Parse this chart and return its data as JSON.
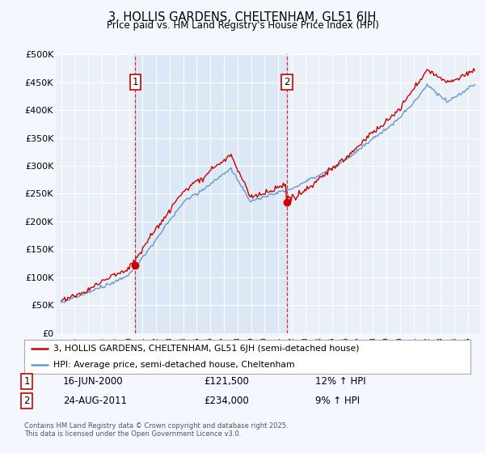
{
  "title": "3, HOLLIS GARDENS, CHELTENHAM, GL51 6JH",
  "subtitle": "Price paid vs. HM Land Registry's House Price Index (HPI)",
  "legend_label_red": "3, HOLLIS GARDENS, CHELTENHAM, GL51 6JH (semi-detached house)",
  "legend_label_blue": "HPI: Average price, semi-detached house, Cheltenham",
  "annotation1_label": "1",
  "annotation1_date": "16-JUN-2000",
  "annotation1_price": "£121,500",
  "annotation1_hpi": "12% ↑ HPI",
  "annotation2_label": "2",
  "annotation2_date": "24-AUG-2011",
  "annotation2_price": "£234,000",
  "annotation2_hpi": "9% ↑ HPI",
  "footer": "Contains HM Land Registry data © Crown copyright and database right 2025.\nThis data is licensed under the Open Government Licence v3.0.",
  "ylim": [
    0,
    500000
  ],
  "yticks": [
    0,
    50000,
    100000,
    150000,
    200000,
    250000,
    300000,
    350000,
    400000,
    450000,
    500000
  ],
  "ytick_labels": [
    "£0",
    "£50K",
    "£100K",
    "£150K",
    "£200K",
    "£250K",
    "£300K",
    "£350K",
    "£400K",
    "£450K",
    "£500K"
  ],
  "background_color": "#f5f7ff",
  "plot_bg_color": "#eaf0f8",
  "highlight_color": "#dce8f5",
  "red_color": "#cc0000",
  "blue_color": "#6699cc",
  "annotation_vline_color": "#cc0000",
  "grid_color": "#ffffff",
  "sale1_year": 2000.46,
  "sale1_price": 121500,
  "sale2_year": 2011.64,
  "sale2_price": 234000
}
